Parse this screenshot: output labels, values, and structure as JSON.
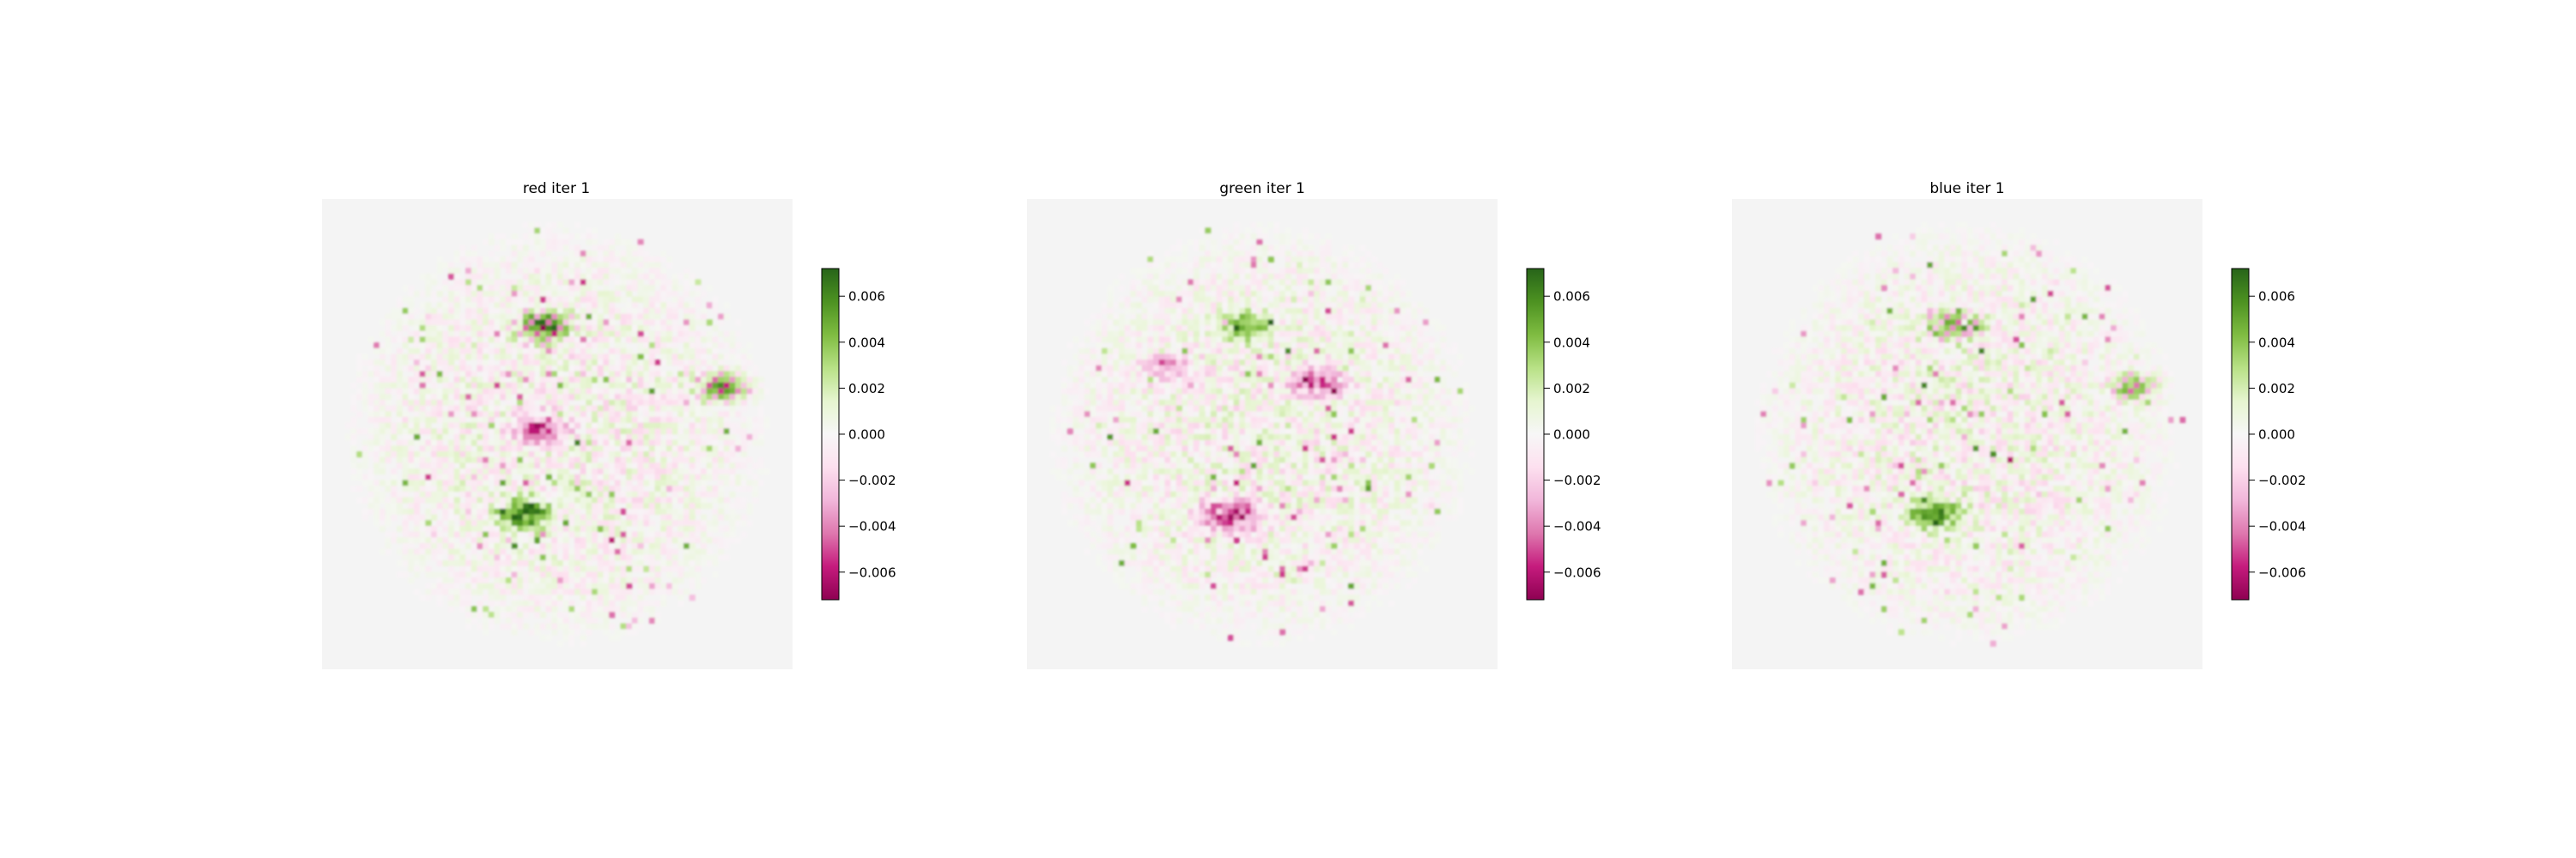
{
  "colorbar": {
    "colormap": "PiYG",
    "vmin": -0.0072,
    "vmax": 0.0072,
    "ticks": [
      "0.006",
      "0.004",
      "0.002",
      "0.000",
      "−0.002",
      "−0.004",
      "−0.006"
    ],
    "tick_values": [
      0.006,
      0.004,
      0.002,
      0.0,
      -0.002,
      -0.004,
      -0.006
    ]
  },
  "chart_data": [
    {
      "type": "heatmap",
      "title": "red iter 1",
      "colormap": "PiYG",
      "value_range": [
        -0.0072,
        0.0072
      ],
      "axes_visible": false,
      "colorbar_ticks": [
        -0.006,
        -0.004,
        -0.002,
        0.0,
        0.002,
        0.004,
        0.006
      ],
      "features": [
        {
          "region": "upper-center",
          "sign": "mixed",
          "peak": 0.0065
        },
        {
          "region": "lower-center",
          "sign": "positive",
          "peak": 0.0068
        },
        {
          "region": "center",
          "sign": "negative",
          "peak": -0.0055
        },
        {
          "region": "right",
          "sign": "mixed",
          "peak": 0.005
        }
      ]
    },
    {
      "type": "heatmap",
      "title": "green iter 1",
      "colormap": "PiYG",
      "value_range": [
        -0.0072,
        0.0072
      ],
      "axes_visible": false,
      "colorbar_ticks": [
        -0.006,
        -0.004,
        -0.002,
        0.0,
        0.002,
        0.004,
        0.006
      ],
      "features": [
        {
          "region": "lower-center",
          "sign": "negative",
          "peak": -0.0068
        },
        {
          "region": "upper-center",
          "sign": "positive",
          "peak": 0.005
        },
        {
          "region": "center-left",
          "sign": "negative",
          "peak": -0.003
        },
        {
          "region": "center-right",
          "sign": "negative",
          "peak": -0.0045
        }
      ]
    },
    {
      "type": "heatmap",
      "title": "blue iter 1",
      "colormap": "PiYG",
      "value_range": [
        -0.0072,
        0.0072
      ],
      "axes_visible": false,
      "colorbar_ticks": [
        -0.006,
        -0.004,
        -0.002,
        0.0,
        0.002,
        0.004,
        0.006
      ],
      "features": [
        {
          "region": "upper-center",
          "sign": "mixed",
          "peak": 0.0055
        },
        {
          "region": "lower-center",
          "sign": "positive",
          "peak": 0.006
        },
        {
          "region": "right",
          "sign": "mixed",
          "peak": 0.004
        }
      ]
    }
  ]
}
